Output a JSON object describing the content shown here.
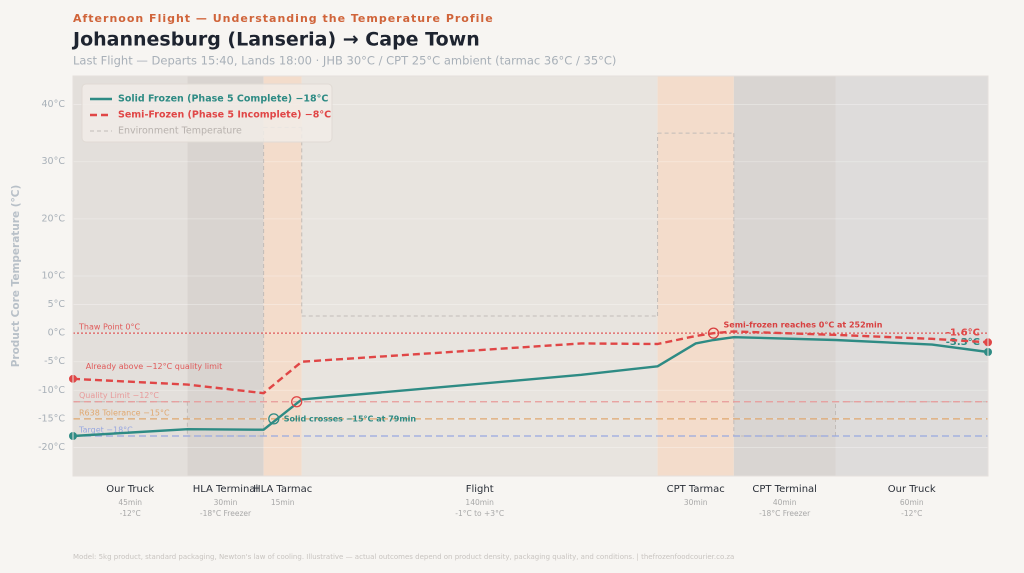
{
  "chart_data": {
    "type": "line",
    "kicker": "Afternoon Flight — Understanding the Temperature Profile",
    "title": "Johannesburg (Lanseria) → Cape Town",
    "subtitle": "Last Flight — Departs 15:40, Lands 18:00 · JHB 30°C / CPT 25°C ambient (tarmac 36°C / 35°C)",
    "footnote": "Model: 5kg product, standard packaging, Newton's law of cooling. Illustrative — actual outcomes depend on product density, packaging quality, and conditions. | thefrozenfoodcourier.co.za",
    "y_label": "Product Core Temperature (°C)",
    "xlim": [
      0,
      360
    ],
    "ylim": [
      -25,
      45
    ],
    "yticks": [
      {
        "value": 40,
        "label": "40°C"
      },
      {
        "value": 30,
        "label": "30°C"
      },
      {
        "value": 20,
        "label": "20°C"
      },
      {
        "value": 10,
        "label": "10°C"
      },
      {
        "value": 5,
        "label": "5°C"
      },
      {
        "value": 0,
        "label": "0°C"
      },
      {
        "value": -5,
        "label": "-5°C"
      },
      {
        "value": -10,
        "label": "-10°C"
      },
      {
        "value": -15,
        "label": "-15°C"
      },
      {
        "value": -20,
        "label": "-20°C"
      }
    ],
    "grid": true,
    "phases": {
      "names": [
        "Our Truck",
        "HLA Terminal",
        "HLA Tarmac",
        "Flight",
        "CPT Tarmac",
        "CPT Terminal",
        "Our Truck"
      ],
      "durations": [
        45,
        30,
        15,
        140,
        30,
        40,
        60
      ],
      "duration_labels": [
        "45min",
        "30min",
        "15min",
        "140min",
        "30min",
        "40min",
        "60min"
      ],
      "env_labels": [
        "-12°C",
        "-18°C Freezer",
        "",
        "-1°C to +3°C",
        "",
        "-18°C Freezer",
        "-12°C"
      ],
      "colors": [
        "#e3dfdb",
        "#d9d4d0",
        "#f3dccb",
        "#e8e4df",
        "#f3dccb",
        "#d9d5d2",
        "#dedcdb"
      ]
    },
    "environment": {
      "name": "Environment Temperature",
      "color": "#c2bcb8",
      "values": [
        -12,
        -18,
        36,
        3,
        35,
        -18,
        -12
      ]
    },
    "x": [
      0,
      45,
      75,
      90,
      200,
      230,
      245,
      252,
      260,
      300,
      338,
      360
    ],
    "series": [
      {
        "name": "Solid Frozen (Phase 5 Complete) −18°C",
        "color": "#2e8b84",
        "dash": "none",
        "values": [
          -18,
          -16.8,
          -16.9,
          -11.6,
          -7.3,
          -5.8,
          -1.8,
          -1.2,
          -0.7,
          -1.2,
          -2.0,
          -3.3
        ],
        "end_label": "-3.3°C"
      },
      {
        "name": "Semi-Frozen (Phase 5 Incomplete) −8°C",
        "color": "#e04646",
        "dash": "7,4",
        "values": [
          -8,
          -9.0,
          -10.5,
          -5,
          -1.8,
          -1.9,
          -0.5,
          0,
          0.3,
          -0.3,
          -1.0,
          -1.6
        ],
        "end_label": "-1.6°C"
      }
    ],
    "reference_lines": [
      {
        "label": "Thaw Point 0°C",
        "value": 0,
        "color": "#e05a5a",
        "dash": "2,2"
      },
      {
        "label": "Quality Limit −12°C",
        "value": -12,
        "color": "#e89a9a",
        "dash": "7,4"
      },
      {
        "label": "R638 Tolerance −15°C",
        "value": -15,
        "color": "#e0a870",
        "dash": "7,4"
      },
      {
        "label": "Target −18°C",
        "value": -18,
        "color": "#98a8e0",
        "dash": "7,4"
      }
    ],
    "annotations": [
      {
        "text": "Already above −12°C quality limit",
        "x": 5,
        "y": -5.8,
        "color": "#e05a5a"
      },
      {
        "text": "Solid crosses −15°C at 79min",
        "x": 79,
        "y": -15,
        "color": "#2e8b84",
        "circle": true
      },
      {
        "text": "Semi-frozen reaches 0°C at 252min",
        "x": 252,
        "y": 0,
        "color": "#d84040",
        "circle": true
      },
      {
        "x": 88,
        "y": -12,
        "color": "#e04646",
        "circle": true
      }
    ]
  }
}
